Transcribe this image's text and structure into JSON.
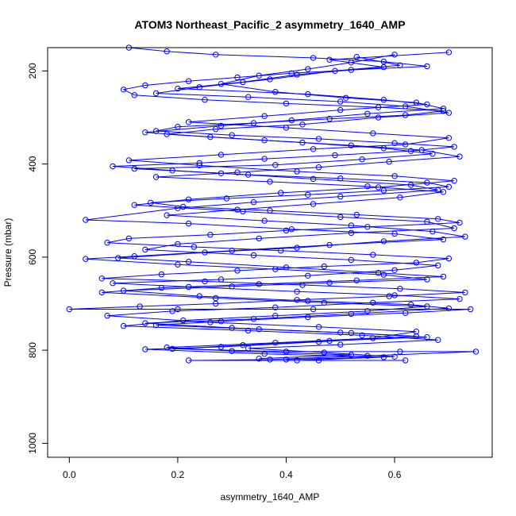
{
  "chart_data": {
    "type": "scatter",
    "title": "ATOM3 Northeast_Pacific_2 asymmetry_1640_AMP",
    "xlabel": "asymmetry_1640_AMP",
    "ylabel": "Pressure (mbar)",
    "xlim": [
      -0.04,
      0.78
    ],
    "ylim": [
      1030,
      150
    ],
    "y_reversed": true,
    "x_ticks": [
      "0.0",
      "0.2",
      "0.4",
      "0.6"
    ],
    "x_tick_values": [
      0.0,
      0.2,
      0.4,
      0.6
    ],
    "y_ticks": [
      "200",
      "400",
      "600",
      "800",
      "1000"
    ],
    "y_tick_values": [
      200,
      400,
      600,
      800,
      1000
    ],
    "grid": false,
    "legend": "none",
    "series_color": "#0000ff",
    "marker": "open-circle",
    "connect_points": true,
    "series": [
      {
        "points": [
          [
            0.11,
            150
          ],
          [
            0.18,
            158
          ],
          [
            0.27,
            165
          ],
          [
            0.45,
            172
          ],
          [
            0.58,
            180
          ],
          [
            0.66,
            190
          ],
          [
            0.52,
            198
          ],
          [
            0.41,
            205
          ],
          [
            0.31,
            214
          ],
          [
            0.22,
            222
          ],
          [
            0.14,
            231
          ],
          [
            0.1,
            240
          ],
          [
            0.12,
            252
          ],
          [
            0.25,
            262
          ],
          [
            0.4,
            270
          ],
          [
            0.57,
            278
          ],
          [
            0.69,
            286
          ],
          [
            0.62,
            295
          ],
          [
            0.48,
            303
          ],
          [
            0.34,
            312
          ],
          [
            0.2,
            320
          ],
          [
            0.16,
            329
          ],
          [
            0.3,
            338
          ],
          [
            0.46,
            346
          ],
          [
            0.6,
            355
          ],
          [
            0.71,
            363
          ],
          [
            0.63,
            372
          ],
          [
            0.49,
            381
          ],
          [
            0.36,
            389
          ],
          [
            0.24,
            398
          ],
          [
            0.08,
            405
          ],
          [
            0.19,
            414
          ],
          [
            0.33,
            423
          ],
          [
            0.5,
            431
          ],
          [
            0.66,
            440
          ],
          [
            0.7,
            449
          ],
          [
            0.58,
            457
          ],
          [
            0.44,
            466
          ],
          [
            0.29,
            474
          ],
          [
            0.15,
            483
          ],
          [
            0.21,
            492
          ],
          [
            0.37,
            500
          ],
          [
            0.53,
            509
          ],
          [
            0.68,
            518
          ],
          [
            0.72,
            526
          ],
          [
            0.55,
            535
          ],
          [
            0.4,
            543
          ],
          [
            0.26,
            552
          ],
          [
            0.11,
            560
          ],
          [
            0.07,
            569
          ],
          [
            0.23,
            578
          ],
          [
            0.39,
            586
          ],
          [
            0.56,
            595
          ],
          [
            0.7,
            603
          ],
          [
            0.64,
            612
          ],
          [
            0.47,
            620
          ],
          [
            0.31,
            629
          ],
          [
            0.17,
            637
          ],
          [
            0.06,
            646
          ],
          [
            0.25,
            652
          ],
          [
            0.43,
            660
          ],
          [
            0.61,
            668
          ],
          [
            0.73,
            676
          ],
          [
            0.59,
            684
          ],
          [
            0.42,
            692
          ],
          [
            0.27,
            700
          ],
          [
            0.13,
            706
          ],
          [
            0.0,
            712
          ],
          [
            0.2,
            712
          ],
          [
            0.45,
            712
          ],
          [
            0.74,
            712
          ],
          [
            0.62,
            720
          ],
          [
            0.44,
            729
          ],
          [
            0.28,
            738
          ],
          [
            0.16,
            746
          ],
          [
            0.35,
            755
          ],
          [
            0.52,
            763
          ],
          [
            0.66,
            772
          ],
          [
            0.48,
            780
          ],
          [
            0.32,
            789
          ],
          [
            0.19,
            797
          ],
          [
            0.4,
            803
          ],
          [
            0.61,
            803
          ],
          [
            0.75,
            803
          ],
          [
            0.55,
            812
          ],
          [
            0.37,
            820
          ],
          [
            0.22,
            822
          ],
          [
            0.46,
            822
          ],
          [
            0.62,
            822
          ]
        ]
      },
      {
        "points": [
          [
            0.6,
            165
          ],
          [
            0.52,
            182
          ],
          [
            0.44,
            196
          ],
          [
            0.35,
            210
          ],
          [
            0.28,
            228
          ],
          [
            0.38,
            245
          ],
          [
            0.51,
            258
          ],
          [
            0.64,
            268
          ],
          [
            0.69,
            281
          ],
          [
            0.55,
            292
          ],
          [
            0.41,
            306
          ],
          [
            0.28,
            318
          ],
          [
            0.14,
            332
          ],
          [
            0.26,
            342
          ],
          [
            0.43,
            354
          ],
          [
            0.58,
            366
          ],
          [
            0.67,
            378
          ],
          [
            0.54,
            390
          ],
          [
            0.38,
            402
          ],
          [
            0.12,
            410
          ],
          [
            0.28,
            420
          ],
          [
            0.45,
            432
          ],
          [
            0.63,
            445
          ],
          [
            0.68,
            456
          ],
          [
            0.5,
            470
          ],
          [
            0.34,
            482
          ],
          [
            0.2,
            495
          ],
          [
            0.03,
            520
          ],
          [
            0.22,
            528
          ],
          [
            0.41,
            540
          ],
          [
            0.6,
            550
          ],
          [
            0.69,
            562
          ],
          [
            0.48,
            574
          ],
          [
            0.3,
            586
          ],
          [
            0.12,
            598
          ],
          [
            0.03,
            604
          ],
          [
            0.2,
            616
          ],
          [
            0.38,
            626
          ],
          [
            0.58,
            638
          ],
          [
            0.66,
            648
          ],
          [
            0.48,
            655
          ],
          [
            0.3,
            663
          ],
          [
            0.1,
            672
          ],
          [
            0.24,
            684
          ],
          [
            0.44,
            694
          ],
          [
            0.63,
            702
          ],
          [
            0.7,
            710
          ],
          [
            0.52,
            722
          ],
          [
            0.34,
            733
          ],
          [
            0.14,
            742
          ],
          [
            0.3,
            752
          ],
          [
            0.5,
            762
          ],
          [
            0.64,
            770
          ],
          [
            0.46,
            782
          ],
          [
            0.28,
            793
          ],
          [
            0.14,
            798
          ],
          [
            0.36,
            808
          ],
          [
            0.58,
            815
          ],
          [
            0.42,
            822
          ]
        ]
      },
      {
        "points": [
          [
            0.53,
            170
          ],
          [
            0.61,
            188
          ],
          [
            0.49,
            200
          ],
          [
            0.37,
            218
          ],
          [
            0.24,
            235
          ],
          [
            0.16,
            248
          ],
          [
            0.33,
            256
          ],
          [
            0.5,
            266
          ],
          [
            0.62,
            276
          ],
          [
            0.7,
            290
          ],
          [
            0.57,
            300
          ],
          [
            0.43,
            315
          ],
          [
            0.27,
            325
          ],
          [
            0.18,
            336
          ],
          [
            0.36,
            349
          ],
          [
            0.52,
            360
          ],
          [
            0.65,
            370
          ],
          [
            0.72,
            384
          ],
          [
            0.59,
            395
          ],
          [
            0.46,
            407
          ],
          [
            0.31,
            418
          ],
          [
            0.16,
            428
          ],
          [
            0.37,
            438
          ],
          [
            0.55,
            448
          ],
          [
            0.69,
            460
          ],
          [
            0.61,
            472
          ],
          [
            0.45,
            486
          ],
          [
            0.31,
            498
          ],
          [
            0.18,
            510
          ],
          [
            0.36,
            522
          ],
          [
            0.52,
            532
          ],
          [
            0.67,
            545
          ],
          [
            0.73,
            556
          ],
          [
            0.58,
            566
          ],
          [
            0.42,
            580
          ],
          [
            0.25,
            590
          ],
          [
            0.09,
            602
          ],
          [
            0.22,
            610
          ],
          [
            0.4,
            622
          ],
          [
            0.57,
            634
          ],
          [
            0.69,
            642
          ],
          [
            0.53,
            650
          ],
          [
            0.35,
            658
          ],
          [
            0.17,
            666
          ],
          [
            0.06,
            676
          ],
          [
            0.27,
            688
          ],
          [
            0.47,
            698
          ],
          [
            0.66,
            706
          ],
          [
            0.55,
            716
          ],
          [
            0.38,
            726
          ],
          [
            0.21,
            736
          ],
          [
            0.1,
            748
          ],
          [
            0.33,
            758
          ],
          [
            0.54,
            768
          ],
          [
            0.68,
            778
          ],
          [
            0.5,
            788
          ],
          [
            0.33,
            796
          ],
          [
            0.47,
            805
          ],
          [
            0.6,
            814
          ],
          [
            0.4,
            820
          ]
        ]
      },
      {
        "points": [
          [
            0.7,
            160
          ],
          [
            0.48,
            176
          ],
          [
            0.58,
            192
          ],
          [
            0.42,
            208
          ],
          [
            0.32,
            224
          ],
          [
            0.2,
            238
          ],
          [
            0.44,
            250
          ],
          [
            0.58,
            262
          ],
          [
            0.66,
            272
          ],
          [
            0.5,
            284
          ],
          [
            0.36,
            297
          ],
          [
            0.22,
            310
          ],
          [
            0.4,
            322
          ],
          [
            0.56,
            334
          ],
          [
            0.7,
            344
          ],
          [
            0.62,
            358
          ],
          [
            0.45,
            368
          ],
          [
            0.28,
            380
          ],
          [
            0.11,
            392
          ],
          [
            0.24,
            403
          ],
          [
            0.42,
            416
          ],
          [
            0.6,
            426
          ],
          [
            0.71,
            436
          ],
          [
            0.57,
            450
          ],
          [
            0.39,
            462
          ],
          [
            0.22,
            476
          ],
          [
            0.12,
            488
          ],
          [
            0.32,
            502
          ],
          [
            0.5,
            514
          ],
          [
            0.66,
            524
          ],
          [
            0.71,
            538
          ],
          [
            0.52,
            548
          ],
          [
            0.35,
            560
          ],
          [
            0.2,
            572
          ],
          [
            0.14,
            584
          ],
          [
            0.34,
            596
          ],
          [
            0.52,
            606
          ],
          [
            0.68,
            618
          ],
          [
            0.6,
            628
          ],
          [
            0.44,
            640
          ],
          [
            0.28,
            648
          ],
          [
            0.08,
            656
          ],
          [
            0.22,
            664
          ],
          [
            0.42,
            674
          ],
          [
            0.6,
            682
          ],
          [
            0.72,
            690
          ],
          [
            0.56,
            698
          ],
          [
            0.38,
            708
          ],
          [
            0.19,
            716
          ],
          [
            0.07,
            726
          ],
          [
            0.26,
            740
          ],
          [
            0.46,
            750
          ],
          [
            0.64,
            760
          ],
          [
            0.56,
            774
          ],
          [
            0.38,
            784
          ],
          [
            0.18,
            794
          ],
          [
            0.3,
            802
          ],
          [
            0.52,
            810
          ],
          [
            0.35,
            818
          ]
        ]
      }
    ]
  }
}
